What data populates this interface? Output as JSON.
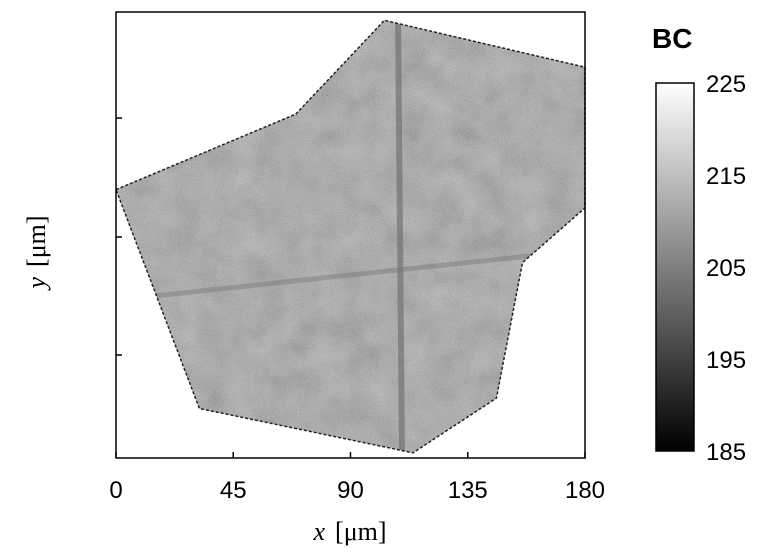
{
  "chart_data": {
    "type": "heatmap",
    "xlabel_var": "x",
    "xlabel_unit": "[μm]",
    "ylabel_var": "y",
    "ylabel_unit": "[μm]",
    "x_ticks": [
      0,
      45,
      90,
      135,
      180
    ],
    "xlim": [
      0,
      180
    ],
    "colorbar": {
      "title": "BC",
      "ticks": [
        185,
        195,
        205,
        215,
        225
      ],
      "range": [
        185,
        225
      ],
      "colormap": "gray",
      "low_color": "#000000",
      "high_color": "#ffffff"
    },
    "grain_outline_um": [
      [
        0,
        103
      ],
      [
        50,
        124
      ],
      [
        69,
        132
      ],
      [
        103,
        168
      ],
      [
        180,
        150
      ],
      [
        180,
        96
      ],
      [
        156,
        75
      ],
      [
        146,
        23
      ],
      [
        114,
        2
      ],
      [
        32,
        19
      ]
    ],
    "mean_bc": 200
  }
}
